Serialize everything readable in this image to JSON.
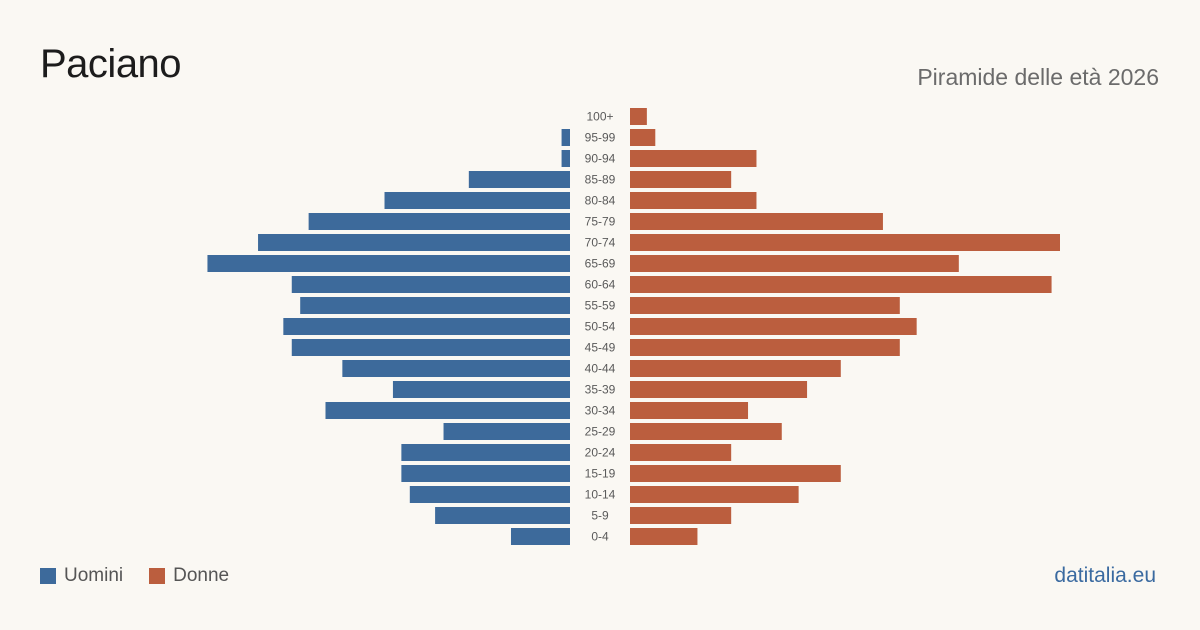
{
  "header": {
    "title": "Paciano",
    "subtitle": "Piramide delle età 2026"
  },
  "legend": {
    "male_label": "Uomini",
    "female_label": "Donne"
  },
  "brand": "datitalia.eu",
  "colors": {
    "male": "#3d6a9b",
    "female": "#bb5e3e"
  },
  "chart_data": {
    "type": "bar",
    "orientation": "horizontal-pyramid",
    "categories": [
      "100+",
      "95-99",
      "90-94",
      "85-89",
      "80-84",
      "75-79",
      "70-74",
      "65-69",
      "60-64",
      "55-59",
      "50-54",
      "45-49",
      "40-44",
      "35-39",
      "30-34",
      "25-29",
      "20-24",
      "15-19",
      "10-14",
      "5-9",
      "0-4"
    ],
    "series": [
      {
        "name": "Uomini",
        "values": [
          0,
          1,
          1,
          12,
          22,
          31,
          37,
          43,
          33,
          32,
          34,
          33,
          27,
          21,
          29,
          15,
          20,
          20,
          19,
          16,
          7
        ]
      },
      {
        "name": "Donne",
        "values": [
          2,
          3,
          15,
          12,
          15,
          30,
          51,
          39,
          50,
          32,
          34,
          32,
          25,
          21,
          14,
          18,
          12,
          25,
          20,
          12,
          8
        ]
      }
    ],
    "xlim": [
      0,
      51
    ],
    "grid": false,
    "legend": "bottom-left"
  }
}
